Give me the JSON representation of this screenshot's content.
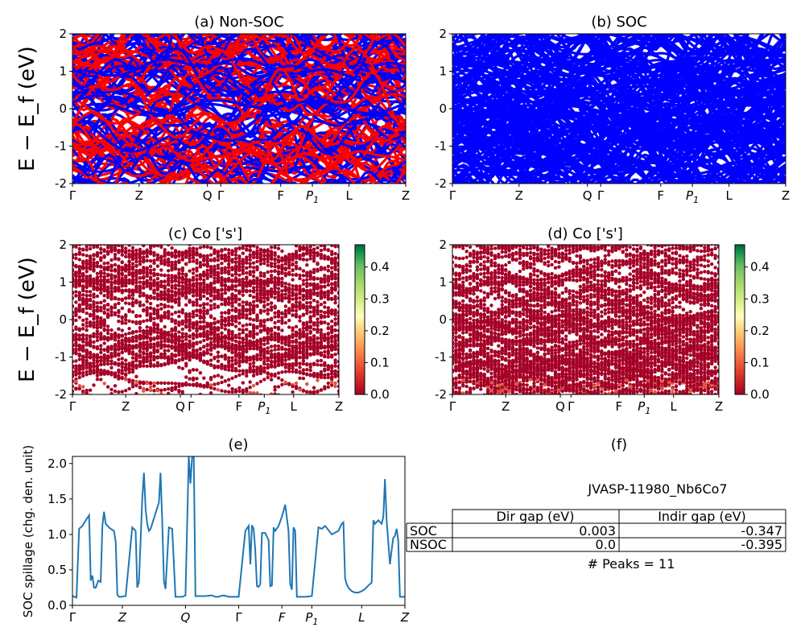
{
  "chart_data": [
    {
      "id": "a",
      "type": "line",
      "title": "(a) Non-SOC",
      "ylabel": "E − E_f (eV)",
      "ylim": [
        -2,
        2
      ],
      "yticks": [
        "-2",
        "-1",
        "0",
        "1",
        "2"
      ],
      "kpath_labels": [
        "Γ",
        "Z",
        "Q",
        "Γ",
        "F",
        "P1",
        "L",
        "Z"
      ],
      "kpath_positions": [
        0.0,
        0.2,
        0.405,
        0.445,
        0.625,
        0.72,
        0.83,
        1.0
      ],
      "series": [
        {
          "name": "",
          "color": "#ff0000"
        },
        {
          "name": "",
          "color": "#0000ff"
        }
      ],
      "note_bands": "dense band structure, many overlapping bands"
    },
    {
      "id": "b",
      "type": "line",
      "title": "(b) SOC",
      "ylim": [
        -2,
        2
      ],
      "yticks": [
        "-2",
        "-1",
        "0",
        "1",
        "2"
      ],
      "kpath_labels": [
        "Γ",
        "Z",
        "Q",
        "Γ",
        "F",
        "P1",
        "L",
        "Z"
      ],
      "kpath_positions": [
        0.0,
        0.2,
        0.405,
        0.445,
        0.625,
        0.72,
        0.83,
        1.0
      ],
      "series": [
        {
          "name": "",
          "color": "#0000ff"
        }
      ]
    },
    {
      "id": "c",
      "type": "scatter",
      "title": "(c)  Co ['s']",
      "ylabel": "E − E_f (eV)",
      "ylim": [
        -2,
        2
      ],
      "yticks": [
        "-2",
        "-1",
        "0",
        "1",
        "2"
      ],
      "kpath_labels": [
        "Γ",
        "Z",
        "Q",
        "Γ",
        "F",
        "P1",
        "L",
        "Z"
      ],
      "kpath_positions": [
        0.0,
        0.2,
        0.405,
        0.445,
        0.625,
        0.72,
        0.83,
        1.0
      ],
      "colorbar": {
        "min": 0.0,
        "max": 0.47,
        "ticks": [
          "0.0",
          "0.1",
          "0.2",
          "0.3",
          "0.4"
        ],
        "colormap": "RdYlGn"
      }
    },
    {
      "id": "d",
      "type": "scatter",
      "title": "(d) Co ['s']",
      "ylim": [
        -2,
        2
      ],
      "yticks": [
        "-2",
        "-1",
        "0",
        "1",
        "2"
      ],
      "kpath_labels": [
        "Γ",
        "Z",
        "Q",
        "Γ",
        "F",
        "P1",
        "L",
        "Z"
      ],
      "kpath_positions": [
        0.0,
        0.2,
        0.405,
        0.445,
        0.625,
        0.72,
        0.83,
        1.0
      ],
      "colorbar": {
        "min": 0.0,
        "max": 0.47,
        "ticks": [
          "0.0",
          "0.1",
          "0.2",
          "0.3",
          "0.4"
        ],
        "colormap": "RdYlGn"
      }
    },
    {
      "id": "e",
      "type": "line",
      "title": "(e)",
      "ylabel": "SOC spillage (chg. den. unit)",
      "ylim": [
        0.0,
        2.1
      ],
      "yticks": [
        "0.0",
        "0.5",
        "1.0",
        "1.5",
        "2.0"
      ],
      "kpath_labels": [
        "Γ",
        "Z",
        "Q",
        "Γ",
        "F",
        "P1",
        "L",
        "Z"
      ],
      "kpath_positions": [
        0.0,
        0.15,
        0.34,
        0.5,
        0.63,
        0.72,
        0.87,
        1.0
      ],
      "series": [
        {
          "name": "",
          "color": "#1f77b4",
          "x": [
            0.0,
            0.012,
            0.02,
            0.03,
            0.04,
            0.05,
            0.055,
            0.06,
            0.065,
            0.07,
            0.078,
            0.085,
            0.09,
            0.095,
            0.1,
            0.11,
            0.115,
            0.125,
            0.13,
            0.135,
            0.14,
            0.145,
            0.16,
            0.18,
            0.19,
            0.195,
            0.2,
            0.21,
            0.215,
            0.22,
            0.225,
            0.23,
            0.235,
            0.24,
            0.26,
            0.265,
            0.27,
            0.275,
            0.28,
            0.29,
            0.3,
            0.31,
            0.325,
            0.33,
            0.335,
            0.34,
            0.35,
            0.355,
            0.36,
            0.365,
            0.37,
            0.4,
            0.415,
            0.42,
            0.425,
            0.43,
            0.44,
            0.445,
            0.455,
            0.47,
            0.5,
            0.52,
            0.53,
            0.535,
            0.54,
            0.545,
            0.55,
            0.555,
            0.56,
            0.565,
            0.57,
            0.58,
            0.59,
            0.595,
            0.6,
            0.605,
            0.61,
            0.62,
            0.63,
            0.64,
            0.65,
            0.655,
            0.66,
            0.665,
            0.67,
            0.675,
            0.68,
            0.69,
            0.7,
            0.72,
            0.74,
            0.75,
            0.755,
            0.76,
            0.78,
            0.8,
            0.81,
            0.815,
            0.82,
            0.825,
            0.83,
            0.84,
            0.85,
            0.86,
            0.87,
            0.88,
            0.89,
            0.9,
            0.905,
            0.91,
            0.92,
            0.93,
            0.935,
            0.94,
            0.945,
            0.955,
            0.96,
            0.965,
            0.97,
            0.975,
            0.98,
            0.985,
            0.99,
            0.993,
            1.0
          ],
          "y": [
            0.13,
            0.11,
            1.08,
            1.12,
            1.2,
            1.27,
            0.35,
            0.42,
            0.25,
            0.25,
            0.35,
            0.33,
            1.12,
            1.32,
            1.15,
            1.1,
            1.08,
            1.05,
            0.9,
            0.15,
            0.12,
            0.12,
            0.13,
            1.1,
            1.05,
            0.25,
            0.33,
            1.5,
            1.87,
            1.35,
            1.15,
            1.05,
            1.08,
            1.15,
            1.45,
            1.87,
            1.2,
            0.35,
            0.23,
            1.1,
            1.08,
            0.12,
            0.12,
            0.12,
            0.13,
            0.14,
            2.1,
            1.72,
            2.1,
            2.1,
            0.13,
            0.13,
            0.14,
            0.14,
            0.13,
            0.12,
            0.12,
            0.13,
            0.14,
            0.12,
            0.12,
            1.05,
            1.12,
            0.58,
            1.13,
            1.08,
            0.78,
            0.27,
            0.26,
            0.3,
            1.02,
            1.02,
            0.92,
            0.27,
            0.28,
            1.1,
            1.05,
            1.12,
            1.25,
            1.42,
            1.05,
            0.3,
            0.22,
            1.1,
            1.05,
            0.12,
            0.12,
            0.12,
            0.12,
            0.13,
            1.1,
            1.08,
            1.1,
            1.12,
            1.0,
            1.05,
            1.15,
            1.17,
            0.38,
            0.3,
            0.25,
            0.2,
            0.18,
            0.18,
            0.2,
            0.23,
            0.28,
            0.32,
            1.2,
            1.15,
            1.2,
            1.15,
            1.25,
            1.78,
            1.2,
            0.58,
            0.78,
            0.95,
            0.98,
            1.08,
            0.92,
            0.12,
            0.12,
            0.12,
            0.12
          ]
        }
      ]
    }
  ],
  "panel_f": {
    "title": "(f)",
    "material": "JVASP-11980_Nb6Co7",
    "table": {
      "columns": [
        "",
        "Dir gap (eV)",
        "Indir gap (eV)"
      ],
      "rows": [
        {
          "label": "SOC",
          "dir": "0.003",
          "indir": "-0.347"
        },
        {
          "label": "NSOC",
          "dir": "0.0",
          "indir": "-0.395"
        }
      ]
    },
    "peaks": "# Peaks = 11"
  },
  "colors": {
    "nonsoc_up": "#ff0000",
    "nonsoc_dn": "#0000ff",
    "soc": "#0000ff",
    "spillage": "#1f77b4",
    "proj_low": "#a50026"
  }
}
